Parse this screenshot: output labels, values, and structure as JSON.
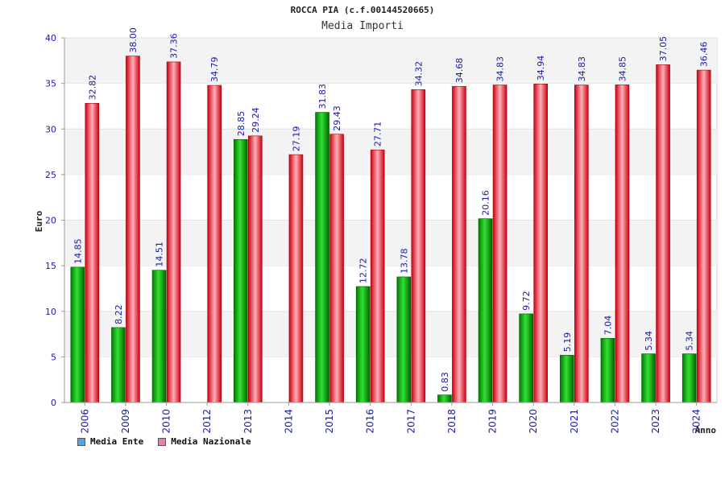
{
  "chart_data": {
    "type": "bar",
    "title": "ROCCA PIA (c.f.00144520665)",
    "subtitle": "Media Importi",
    "xlabel": "Anno",
    "ylabel": "Euro",
    "ylim": [
      0,
      40
    ],
    "yticks": [
      0,
      5,
      10,
      15,
      20,
      25,
      30,
      35,
      40
    ],
    "categories": [
      "2006",
      "2009",
      "2010",
      "2012",
      "2013",
      "2014",
      "2015",
      "2016",
      "2017",
      "2018",
      "2019",
      "2020",
      "2021",
      "2022",
      "2023",
      "2024"
    ],
    "series": [
      {
        "name": "Media Ente",
        "color": "#00b000",
        "values": [
          14.85,
          8.22,
          14.51,
          null,
          28.85,
          null,
          31.83,
          12.72,
          13.78,
          0.83,
          20.16,
          9.72,
          5.19,
          7.04,
          5.34,
          5.34
        ]
      },
      {
        "name": "Media Nazionale",
        "color": "#e8202a",
        "values": [
          32.82,
          38.0,
          37.36,
          34.79,
          29.24,
          27.19,
          29.43,
          27.71,
          34.32,
          34.68,
          34.83,
          34.94,
          34.83,
          34.85,
          37.05,
          36.46
        ]
      }
    ],
    "legend": {
      "position": "bottom-left",
      "items": [
        {
          "label": "Media Ente",
          "color": "#5aa0e6"
        },
        {
          "label": "Media Nazionale",
          "color": "#e87fb0"
        }
      ]
    },
    "grid": true
  }
}
